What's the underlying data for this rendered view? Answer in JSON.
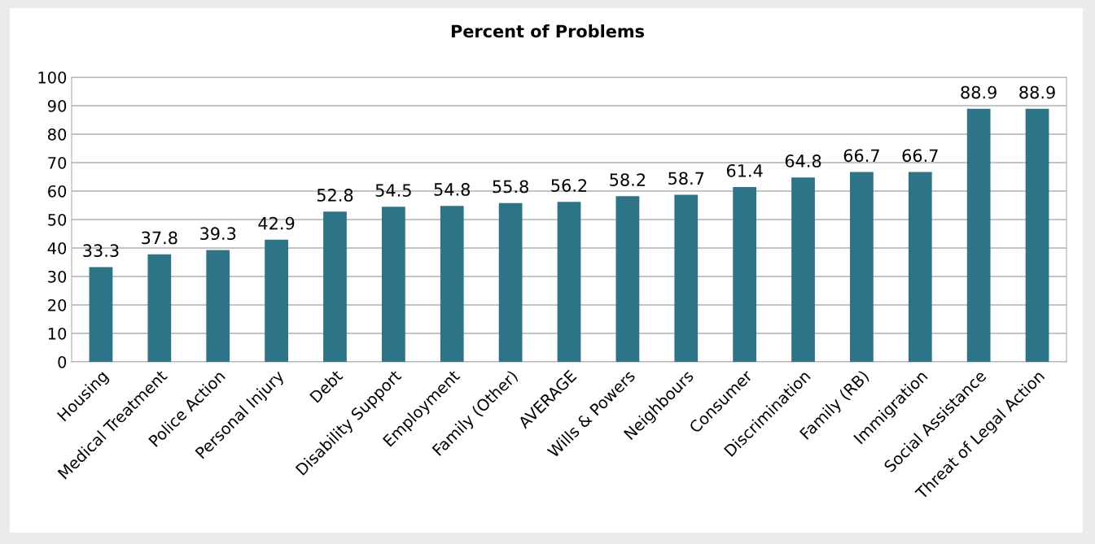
{
  "chart_data": {
    "type": "bar",
    "title": "Percent of Problems",
    "categories": [
      "Housing",
      "Medical Treatment",
      "Police Action",
      "Personal Injury",
      "Debt",
      "Disability Support",
      "Employment",
      "Family (Other)",
      "AVERAGE",
      "Wills & Powers",
      "Neighbours",
      "Consumer",
      "Discrimination",
      "Family (RB)",
      "Immigration",
      "Social Assistance",
      "Threat of Legal Action"
    ],
    "values": [
      33.3,
      37.8,
      39.3,
      42.9,
      52.8,
      54.5,
      54.8,
      55.8,
      56.2,
      58.2,
      58.7,
      61.4,
      64.8,
      66.7,
      66.7,
      88.9,
      88.9
    ],
    "color": "#2e7489",
    "ylim": [
      0,
      100
    ],
    "yticks": [
      0,
      10,
      20,
      30,
      40,
      50,
      60,
      70,
      80,
      90,
      100
    ],
    "grid": "y",
    "data_labels": true
  }
}
